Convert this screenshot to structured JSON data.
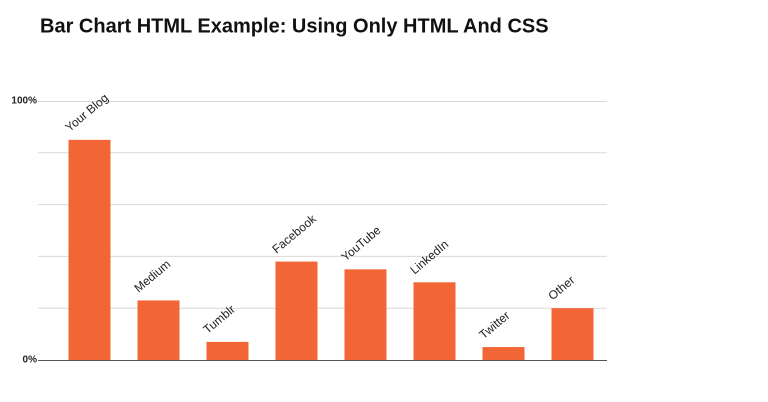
{
  "chart_data": {
    "type": "bar",
    "title": "Bar Chart HTML Example: Using Only HTML And CSS",
    "categories": [
      "Your Blog",
      "Medium",
      "Tumblr",
      "Facebook",
      "YouTube",
      "LinkedIn",
      "Twitter",
      "Other"
    ],
    "values": [
      85,
      23,
      7,
      38,
      35,
      30,
      5,
      20
    ],
    "color": "#f26534",
    "ylim": [
      0,
      100
    ],
    "yticks": [
      {
        "value": 0,
        "label": "0%"
      },
      {
        "value": 100,
        "label": "100%"
      }
    ],
    "minor_yticks": [
      20,
      40,
      60,
      80
    ],
    "grid": true
  }
}
